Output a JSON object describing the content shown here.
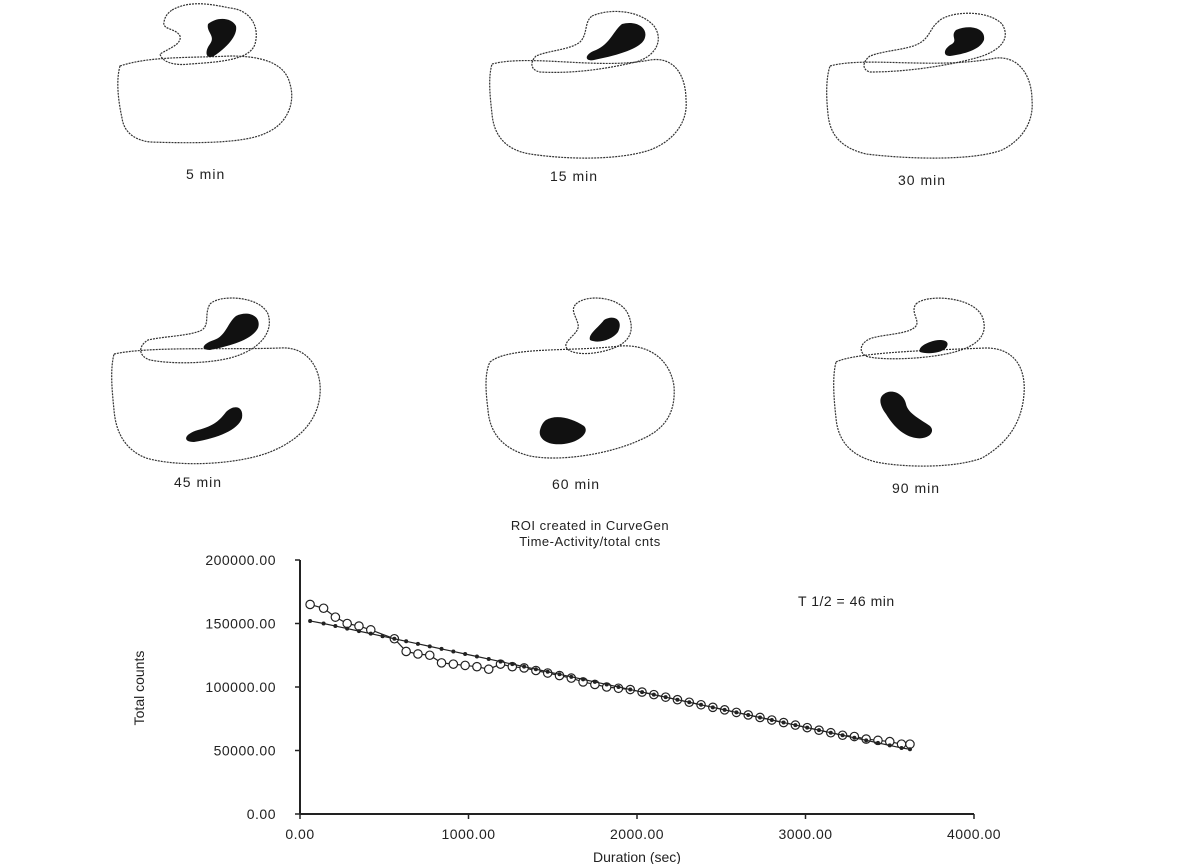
{
  "panels": [
    {
      "label": "5 min"
    },
    {
      "label": "15 min"
    },
    {
      "label": "30 min"
    },
    {
      "label": "45 min"
    },
    {
      "label": "60 min"
    },
    {
      "label": "90 min"
    }
  ],
  "chart_data": {
    "type": "scatter",
    "title": "ROI created in CurveGen",
    "subtitle": "Time-Activity/total cnts",
    "xlabel": "Duration (sec)",
    "ylabel": "Total counts",
    "xlim": [
      0,
      4000
    ],
    "ylim": [
      0,
      200000
    ],
    "x_ticks": [
      "0.00",
      "1000.00",
      "2000.00",
      "3000.00",
      "4000.00"
    ],
    "y_ticks": [
      "0.00",
      "50000.00",
      "100000.00",
      "150000.00",
      "200000.00"
    ],
    "annotation": "T 1/2 = 46 min",
    "grid": false,
    "series": [
      {
        "marker": "open-circle",
        "x": [
          60,
          140,
          210,
          280,
          350,
          420,
          560,
          630,
          700,
          770,
          840,
          910,
          980,
          1050,
          1120,
          1190,
          1260,
          1330,
          1400,
          1470,
          1540,
          1610,
          1680,
          1750,
          1820,
          1890,
          1960,
          2030,
          2100,
          2170,
          2240,
          2310,
          2380,
          2450,
          2520,
          2590,
          2660,
          2730,
          2800,
          2870,
          2940,
          3010,
          3080,
          3150,
          3220,
          3290,
          3360,
          3430,
          3500,
          3570,
          3620
        ],
        "y": [
          165000,
          162000,
          155000,
          150000,
          148000,
          145000,
          138000,
          128000,
          126000,
          125000,
          119000,
          118000,
          117000,
          116000,
          114000,
          118000,
          116000,
          115000,
          113000,
          111000,
          109000,
          107000,
          104000,
          102000,
          100000,
          99000,
          98000,
          96000,
          94000,
          92000,
          90000,
          88000,
          86000,
          84000,
          82000,
          80000,
          78000,
          76000,
          74000,
          72000,
          70000,
          68000,
          66000,
          64000,
          62000,
          61000,
          59000,
          58000,
          57000,
          55000,
          55000
        ]
      },
      {
        "marker": "filled-dot",
        "x": [
          60,
          140,
          210,
          280,
          350,
          420,
          490,
          560,
          630,
          700,
          770,
          840,
          910,
          980,
          1050,
          1120,
          1190,
          1260,
          1330,
          1400,
          1470,
          1540,
          1610,
          1680,
          1750,
          1820,
          1890,
          1960,
          2030,
          2100,
          2170,
          2240,
          2310,
          2380,
          2450,
          2520,
          2590,
          2660,
          2730,
          2800,
          2870,
          2940,
          3010,
          3080,
          3150,
          3220,
          3290,
          3360,
          3430,
          3500,
          3570,
          3620
        ],
        "y": [
          152000,
          150000,
          148000,
          146000,
          144000,
          142000,
          140000,
          138000,
          136000,
          134000,
          132000,
          130000,
          128000,
          126000,
          124000,
          122000,
          120000,
          118000,
          116000,
          114000,
          112000,
          110000,
          108000,
          106000,
          104000,
          102000,
          100000,
          98000,
          96000,
          94000,
          92000,
          90000,
          88000,
          86000,
          84000,
          82000,
          80000,
          78000,
          76000,
          74000,
          72000,
          70000,
          68000,
          66000,
          64000,
          62000,
          60000,
          58000,
          56000,
          54000,
          52000,
          51000
        ]
      }
    ]
  }
}
